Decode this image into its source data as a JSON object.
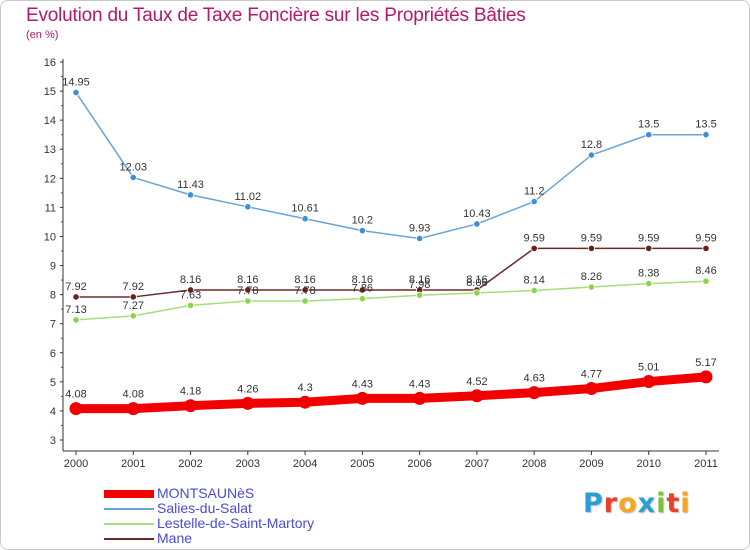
{
  "header": {
    "title": "Evolution du Taux de Taxe Foncière sur les Propriétés Bâties",
    "unit": "(en %)"
  },
  "logo": {
    "letters": [
      "P",
      "r",
      "o",
      "x",
      "i",
      "t",
      "i"
    ],
    "colors": [
      "#2a9fd6",
      "#e8412a",
      "#f5a623",
      "#2a9fd6",
      "#7ac143",
      "#e8412a",
      "#f5a623"
    ]
  },
  "chart_data": {
    "type": "line",
    "title": "Evolution du Taux de Taxe Foncière sur les Propriétés Bâties",
    "ylabel": "(en %)",
    "xlabel": "",
    "ylim": [
      3,
      16
    ],
    "yticks": [
      "3",
      "4",
      "5",
      "6",
      "7",
      "8",
      "9",
      "10",
      "11",
      "12",
      "13",
      "14",
      "15",
      "16"
    ],
    "x": [
      "2000",
      "2001",
      "2002",
      "2003",
      "2004",
      "2005",
      "2006",
      "2007",
      "2008",
      "2009",
      "2010",
      "2011"
    ],
    "series": [
      {
        "name": "Salies-du-Salat",
        "color": "#6aa3d6",
        "point_color": "#3d8fd6",
        "values": [
          14.95,
          12.03,
          11.43,
          11.02,
          10.61,
          10.2,
          9.93,
          10.43,
          11.2,
          12.8,
          13.5,
          13.5
        ],
        "labels": [
          "14.95",
          "12.03",
          "11.43",
          "11.02",
          "10.61",
          "10.2",
          "9.93",
          "10.43",
          "11.2",
          "12.8",
          "13.5",
          "13.5"
        ]
      },
      {
        "name": "Mane",
        "color": "#6b2a2a",
        "point_color": "#6b1e1e",
        "values": [
          7.92,
          7.92,
          8.16,
          8.16,
          8.16,
          8.16,
          8.16,
          8.16,
          9.59,
          9.59,
          9.59,
          9.59
        ],
        "labels": [
          "7.92",
          "7.92",
          "8.16",
          "8.16",
          "8.16",
          "8.16",
          "8.16",
          "8.16",
          "9.59",
          "9.59",
          "9.59",
          "9.59"
        ]
      },
      {
        "name": "Lestelle-de-Saint-Martory",
        "color": "#a8dd7a",
        "point_color": "#8bd44a",
        "values": [
          7.13,
          7.27,
          7.63,
          7.78,
          7.78,
          7.86,
          7.98,
          8.06,
          8.14,
          8.26,
          8.38,
          8.46
        ],
        "labels": [
          "7.13",
          "7.27",
          "7.63",
          "7.78",
          "7.78",
          "7.86",
          "7.98",
          "8.06",
          "8.14",
          "8.26",
          "8.38",
          "8.46"
        ]
      },
      {
        "name": "MONTSAUNèS",
        "color": "#f20000",
        "point_color": "#f20000",
        "values": [
          4.08,
          4.08,
          4.18,
          4.26,
          4.3,
          4.43,
          4.43,
          4.52,
          4.63,
          4.77,
          5.01,
          5.17
        ],
        "labels": [
          "4.08",
          "4.08",
          "4.18",
          "4.26",
          "4.3",
          "4.43",
          "4.43",
          "4.52",
          "4.63",
          "4.77",
          "5.01",
          "5.17"
        ]
      }
    ],
    "legend": [
      "MONTSAUNèS",
      "Salies-du-Salat",
      "Lestelle-de-Saint-Martory",
      "Mane"
    ],
    "legend_position": "bottom-left",
    "grid": false
  }
}
